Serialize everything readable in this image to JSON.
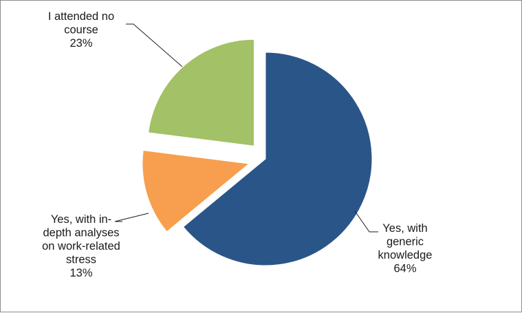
{
  "chart_data": {
    "type": "pie",
    "title": "",
    "slices": [
      {
        "label_lines": [
          "Yes, with",
          "generic",
          "knowledge"
        ],
        "value": 64,
        "value_label": "64%",
        "color": "#2a5588"
      },
      {
        "label_lines": [
          "Yes, with in-",
          "depth analyses",
          "on work-related",
          "stress"
        ],
        "value": 13,
        "value_label": "13%",
        "color": "#f79f4f"
      },
      {
        "label_lines": [
          "I attended no",
          "course"
        ],
        "value": 23,
        "value_label": "23%",
        "color": "#a3c166"
      }
    ],
    "legend": "none",
    "exploded": true
  }
}
